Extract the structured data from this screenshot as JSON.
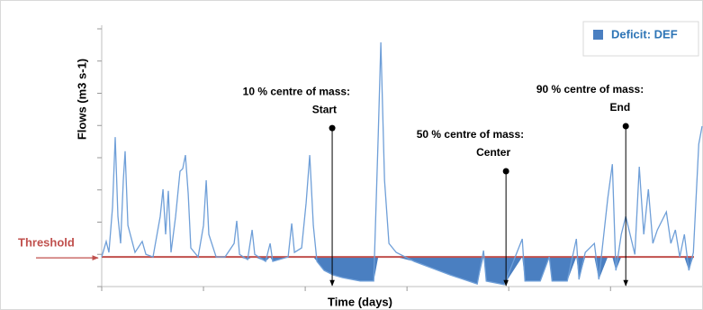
{
  "chart_data": {
    "type": "line",
    "xlabel": "Time (days)",
    "ylabel": "Flows (m3 s-1)",
    "legend": "Deficit: DEF",
    "legend_position": "upper right",
    "threshold": 0.92,
    "threshold_label": "Threshold",
    "line_color": "#6f9fd8",
    "deficit_color": "#4a7fc1",
    "threshold_color": "#c0504d",
    "xlim": [
      0,
      590
    ],
    "ylim": [
      0,
      8
    ],
    "xticks": [
      0,
      100,
      200,
      300,
      400,
      500
    ],
    "yticks": [
      0,
      1,
      2,
      3,
      4,
      5,
      6,
      7,
      8
    ],
    "x": [
      0,
      4.4,
      7.1,
      10.6,
      13.3,
      15.9,
      18.6,
      21.2,
      23,
      25.7,
      32.7,
      39.8,
      43.4,
      50.4,
      57.5,
      60.2,
      62.8,
      65.5,
      68.1,
      72.6,
      77,
      79.6,
      82.3,
      85,
      87.6,
      94.7,
      100,
      102.7,
      105.3,
      112.4,
      121.2,
      130.1,
      132.7,
      135.4,
      143.4,
      147.8,
      150.4,
      161.1,
      165.5,
      168.1,
      183.2,
      186.7,
      189.4,
      196.5,
      200.9,
      204.4,
      208,
      211.5,
      218.6,
      227.4,
      236.3,
      254,
      267.3,
      271.7,
      274.3,
      277.9,
      282.3,
      289.4,
      307.1,
      342.5,
      369,
      375.2,
      377.9,
      395.6,
      413.3,
      415.9,
      431,
      439.8,
      442.5,
      457.5,
      466.4,
      469,
      475.2,
      484.1,
      488.5,
      497.3,
      501.8,
      505.3,
      510.6,
      515,
      523.9,
      528.3,
      532.7,
      537.2,
      541.6,
      546,
      554.9,
      559.3,
      563.7,
      568.1,
      572.6,
      577,
      581.4,
      586.7,
      590
    ],
    "values": [
      0.92,
      1.4,
      1.06,
      2.46,
      4.64,
      2.18,
      1.34,
      3.3,
      4.2,
      1.9,
      1.06,
      1.4,
      1.0,
      0.92,
      2.18,
      3.02,
      1.62,
      2.97,
      1.06,
      2.18,
      3.58,
      3.66,
      4.08,
      2.88,
      1.2,
      0.92,
      1.9,
      3.3,
      1.62,
      0.92,
      0.92,
      1.34,
      2.04,
      1.0,
      0.84,
      1.76,
      1.0,
      0.78,
      1.34,
      0.78,
      0.92,
      1.96,
      1.06,
      1.2,
      2.6,
      4.08,
      1.9,
      0.78,
      0.5,
      0.36,
      0.28,
      0.17,
      0.17,
      4.7,
      7.58,
      3.3,
      1.34,
      1.06,
      0.78,
      0.36,
      0.08,
      1.12,
      0.17,
      0.06,
      1.48,
      0.17,
      0.17,
      0.92,
      0.17,
      0.17,
      1.48,
      0.22,
      1.06,
      1.34,
      0.22,
      2.74,
      3.8,
      0.5,
      1.62,
      2.18,
      1.0,
      3.72,
      1.62,
      3.02,
      1.34,
      1.76,
      2.32,
      1.34,
      1.76,
      0.92,
      1.62,
      0.5,
      1.06,
      4.42,
      4.98
    ],
    "annotations": [
      {
        "text": "10 % centre of mass:",
        "label": "Start",
        "x": 226.5,
        "y": 4.92
      },
      {
        "text": "50 % centre of mass:",
        "label": "Center",
        "x": 397.3,
        "y": 3.58
      },
      {
        "text": "90 % centre of mass:",
        "label": "End",
        "x": 515,
        "y": 4.98
      }
    ]
  }
}
